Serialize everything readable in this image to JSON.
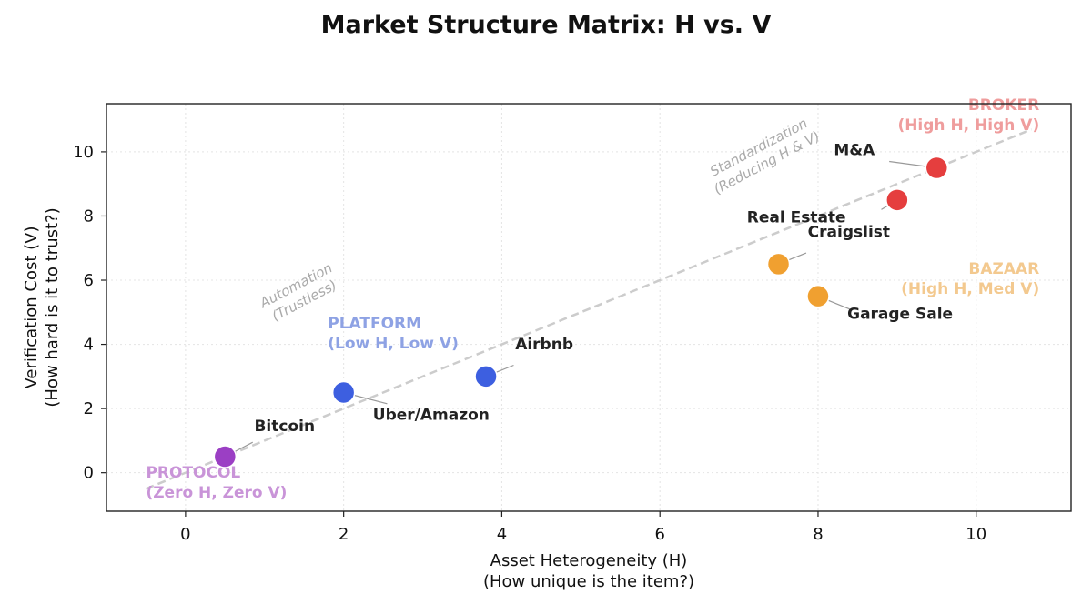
{
  "chart_data": {
    "type": "scatter",
    "title": "Market Structure Matrix: H vs. V",
    "xlabel": [
      "Asset Heterogeneity (H)",
      "(How unique is the item?)"
    ],
    "ylabel": [
      "Verification Cost (V)",
      "(How hard is it to trust?)"
    ],
    "xlim": [
      -1.0,
      11.2
    ],
    "ylim": [
      -1.2,
      11.5
    ],
    "xticks": [
      0,
      2,
      4,
      6,
      8,
      10
    ],
    "yticks": [
      0,
      2,
      4,
      6,
      8,
      10
    ],
    "grid": true,
    "points": [
      {
        "label": "Bitcoin",
        "x": 0.5,
        "y": 0.5,
        "color": "#9b3fc4",
        "lx": 0.87,
        "ly": 1.3,
        "anchor": "start"
      },
      {
        "label": "Uber/Amazon",
        "x": 2.0,
        "y": 2.5,
        "color": "#3d5fe0",
        "lx": 2.37,
        "ly": 1.65,
        "anchor": "start"
      },
      {
        "label": "Airbnb",
        "x": 3.8,
        "y": 3.0,
        "color": "#3d5fe0",
        "lx": 4.17,
        "ly": 3.85,
        "anchor": "start"
      },
      {
        "label": "Craigslist",
        "x": 7.5,
        "y": 6.5,
        "color": "#f0a030",
        "lx": 7.87,
        "ly": 7.35,
        "anchor": "start"
      },
      {
        "label": "Garage Sale",
        "x": 8.0,
        "y": 5.5,
        "color": "#f0a030",
        "lx": 8.37,
        "ly": 4.8,
        "anchor": "start"
      },
      {
        "label": "Real Estate",
        "x": 9.0,
        "y": 8.5,
        "color": "#e53e3e",
        "lx": 7.1,
        "ly": 7.8,
        "anchor": "start"
      },
      {
        "label": "M&A",
        "x": 9.5,
        "y": 9.5,
        "color": "#e53e3e",
        "lx": 8.2,
        "ly": 9.9,
        "anchor": "start"
      }
    ],
    "trend_line": {
      "x": [
        -0.5,
        10.7
      ],
      "y": [
        -0.5,
        10.7
      ],
      "color": "#cccccc"
    },
    "trend_annotations": [
      {
        "lines": [
          "Automation",
          "(Trustless)"
        ],
        "x": 1.45,
        "y": 5.6,
        "rotation": -28
      },
      {
        "lines": [
          "Standardization",
          "(Reducing H & V)"
        ],
        "x": 7.3,
        "y": 9.9,
        "rotation": -28
      }
    ],
    "regions": [
      {
        "title": "PROTOCOL",
        "subtitle": "(Zero H, Zero V)",
        "x": -0.5,
        "y": -0.15,
        "color": "#c994d8",
        "anchor": "start"
      },
      {
        "title": "PLATFORM",
        "subtitle": "(Low H, Low V)",
        "x": 1.8,
        "y": 4.5,
        "color": "#8ea2e4",
        "anchor": "start"
      },
      {
        "title": "BAZAAR",
        "subtitle": "(High H, Med V)",
        "x": 10.8,
        "y": 6.2,
        "color": "#f3c98f",
        "anchor": "end"
      },
      {
        "title": "BROKER",
        "subtitle": "(High H, High V)",
        "x": 10.8,
        "y": 11.3,
        "color": "#ef9d9d",
        "anchor": "end"
      }
    ]
  }
}
